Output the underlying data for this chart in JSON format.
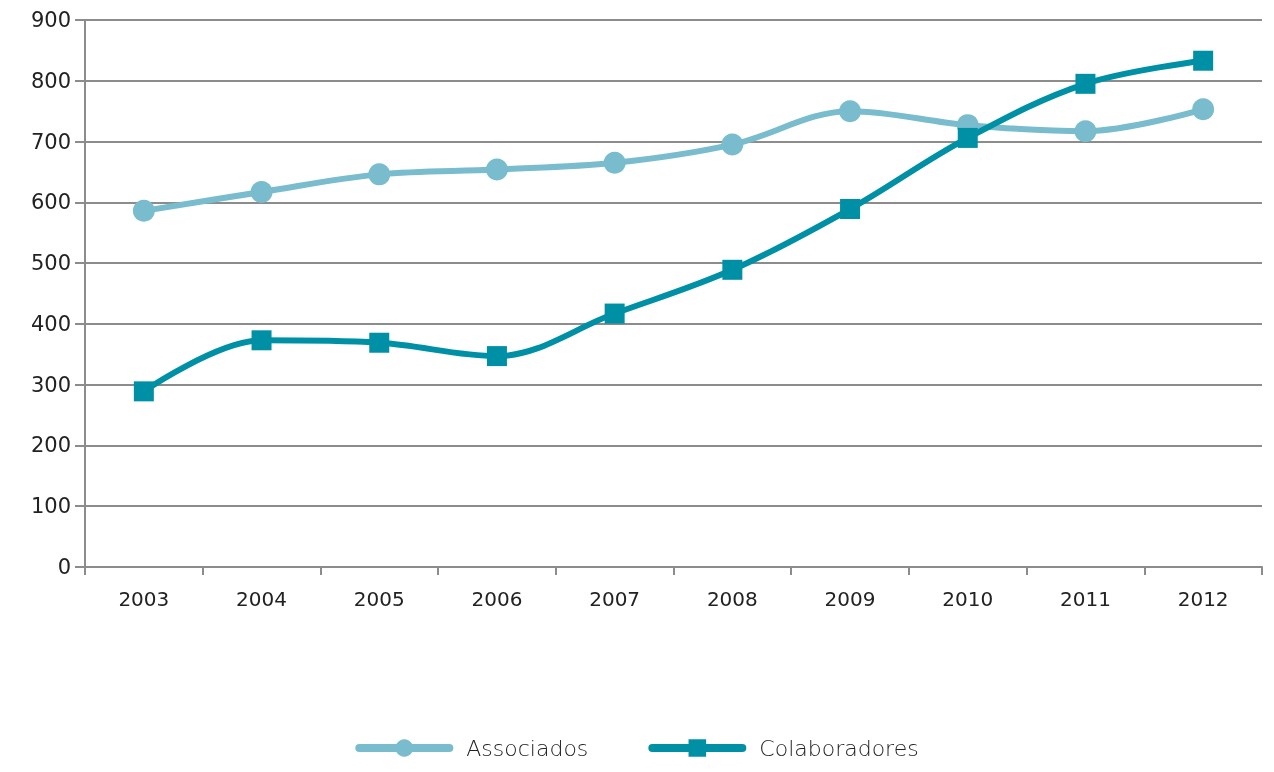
{
  "chart_data": {
    "type": "line",
    "categories": [
      "2003",
      "2004",
      "2005",
      "2006",
      "2007",
      "2008",
      "2009",
      "2010",
      "2011",
      "2012"
    ],
    "series": [
      {
        "name": "Associados",
        "color": "#78bccd",
        "marker": "circle",
        "values": [
          586,
          617,
          646,
          654,
          665,
          695,
          750,
          727,
          717,
          753
        ]
      },
      {
        "name": "Colaboradores",
        "color": "#0090a6",
        "marker": "square",
        "values": [
          289,
          373,
          369,
          347,
          417,
          489,
          589,
          706,
          795,
          833
        ]
      }
    ],
    "ylim": [
      0,
      900
    ],
    "yticks": [
      0,
      100,
      200,
      300,
      400,
      500,
      600,
      700,
      800,
      900
    ],
    "grid": "y",
    "legend": "bottom"
  }
}
